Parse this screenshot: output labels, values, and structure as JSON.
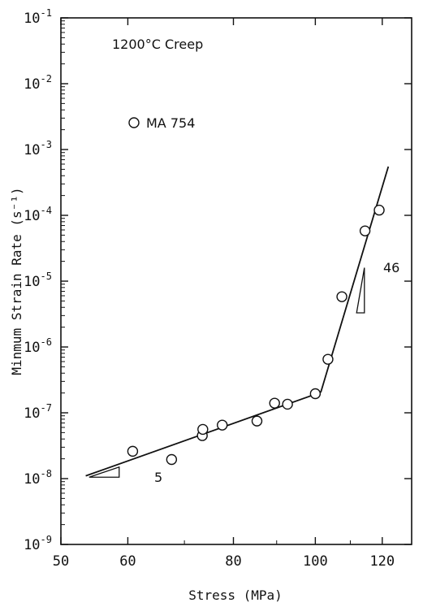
{
  "chart_data": {
    "type": "scatter",
    "xscale": "log",
    "yscale": "log",
    "xlabel": "Stress (MPa)",
    "ylabel": "Minmum Strain Rate (s⁻¹)",
    "xlim": [
      50,
      130
    ],
    "ylim_exponents": [
      -9,
      -1
    ],
    "x_ticks": [
      {
        "value": 50,
        "label": "50"
      },
      {
        "value": 60,
        "label": "60"
      },
      {
        "value": 80,
        "label": "80"
      },
      {
        "value": 100,
        "label": "100"
      },
      {
        "value": 120,
        "label": "120"
      }
    ],
    "y_ticks": [
      {
        "exp": -1,
        "base": "10",
        "sup": "-1"
      },
      {
        "exp": -2,
        "base": "10",
        "sup": "-2"
      },
      {
        "exp": -3,
        "base": "10",
        "sup": "-3"
      },
      {
        "exp": -4,
        "base": "10",
        "sup": "-4"
      },
      {
        "exp": -5,
        "base": "10",
        "sup": "-5"
      },
      {
        "exp": -6,
        "base": "10",
        "sup": "-6"
      },
      {
        "exp": -7,
        "base": "10",
        "sup": "-7"
      },
      {
        "exp": -8,
        "base": "10",
        "sup": "-8"
      },
      {
        "exp": -9,
        "base": "10",
        "sup": "-9"
      }
    ],
    "annotations": {
      "condition": "1200°C Creep",
      "legend_label": "MA 754",
      "slope_low": "5",
      "slope_high": "46"
    },
    "series": [
      {
        "name": "MA 754",
        "marker": "open-circle",
        "points": [
          [
            60.8,
            2.6e-08
          ],
          [
            67.6,
            1.95e-08
          ],
          [
            73.5,
            4.5e-08
          ],
          [
            73.6,
            5.6e-08
          ],
          [
            77.6,
            6.5e-08
          ],
          [
            85.3,
            7.5e-08
          ],
          [
            89.5,
            1.4e-07
          ],
          [
            92.7,
            1.35e-07
          ],
          [
            100.0,
            1.95e-07
          ],
          [
            103.5,
            6.5e-07
          ],
          [
            107.5,
            5.8e-06
          ],
          [
            114.5,
            5.8e-05
          ],
          [
            119.0,
            0.00012
          ]
        ]
      }
    ],
    "fit_lines": [
      {
        "name": "low-stress fit",
        "points": [
          [
            53.5,
            1.1e-08
          ],
          [
            101.5,
            2.05e-07
          ]
        ]
      },
      {
        "name": "high-stress fit",
        "points": [
          [
            101.5,
            2.05e-07
          ],
          [
            122.0,
            0.00055
          ]
        ]
      }
    ],
    "slope_triangles": [
      {
        "label": "5",
        "points": [
          [
            54.0,
            1.05e-08
          ],
          [
            58.6,
            1.05e-08
          ],
          [
            58.6,
            1.5e-08
          ]
        ]
      },
      {
        "label": "46",
        "points": [
          [
            111.9,
            3.3e-06
          ],
          [
            114.3,
            3.3e-06
          ],
          [
            114.3,
            1.6e-05
          ]
        ]
      }
    ]
  }
}
